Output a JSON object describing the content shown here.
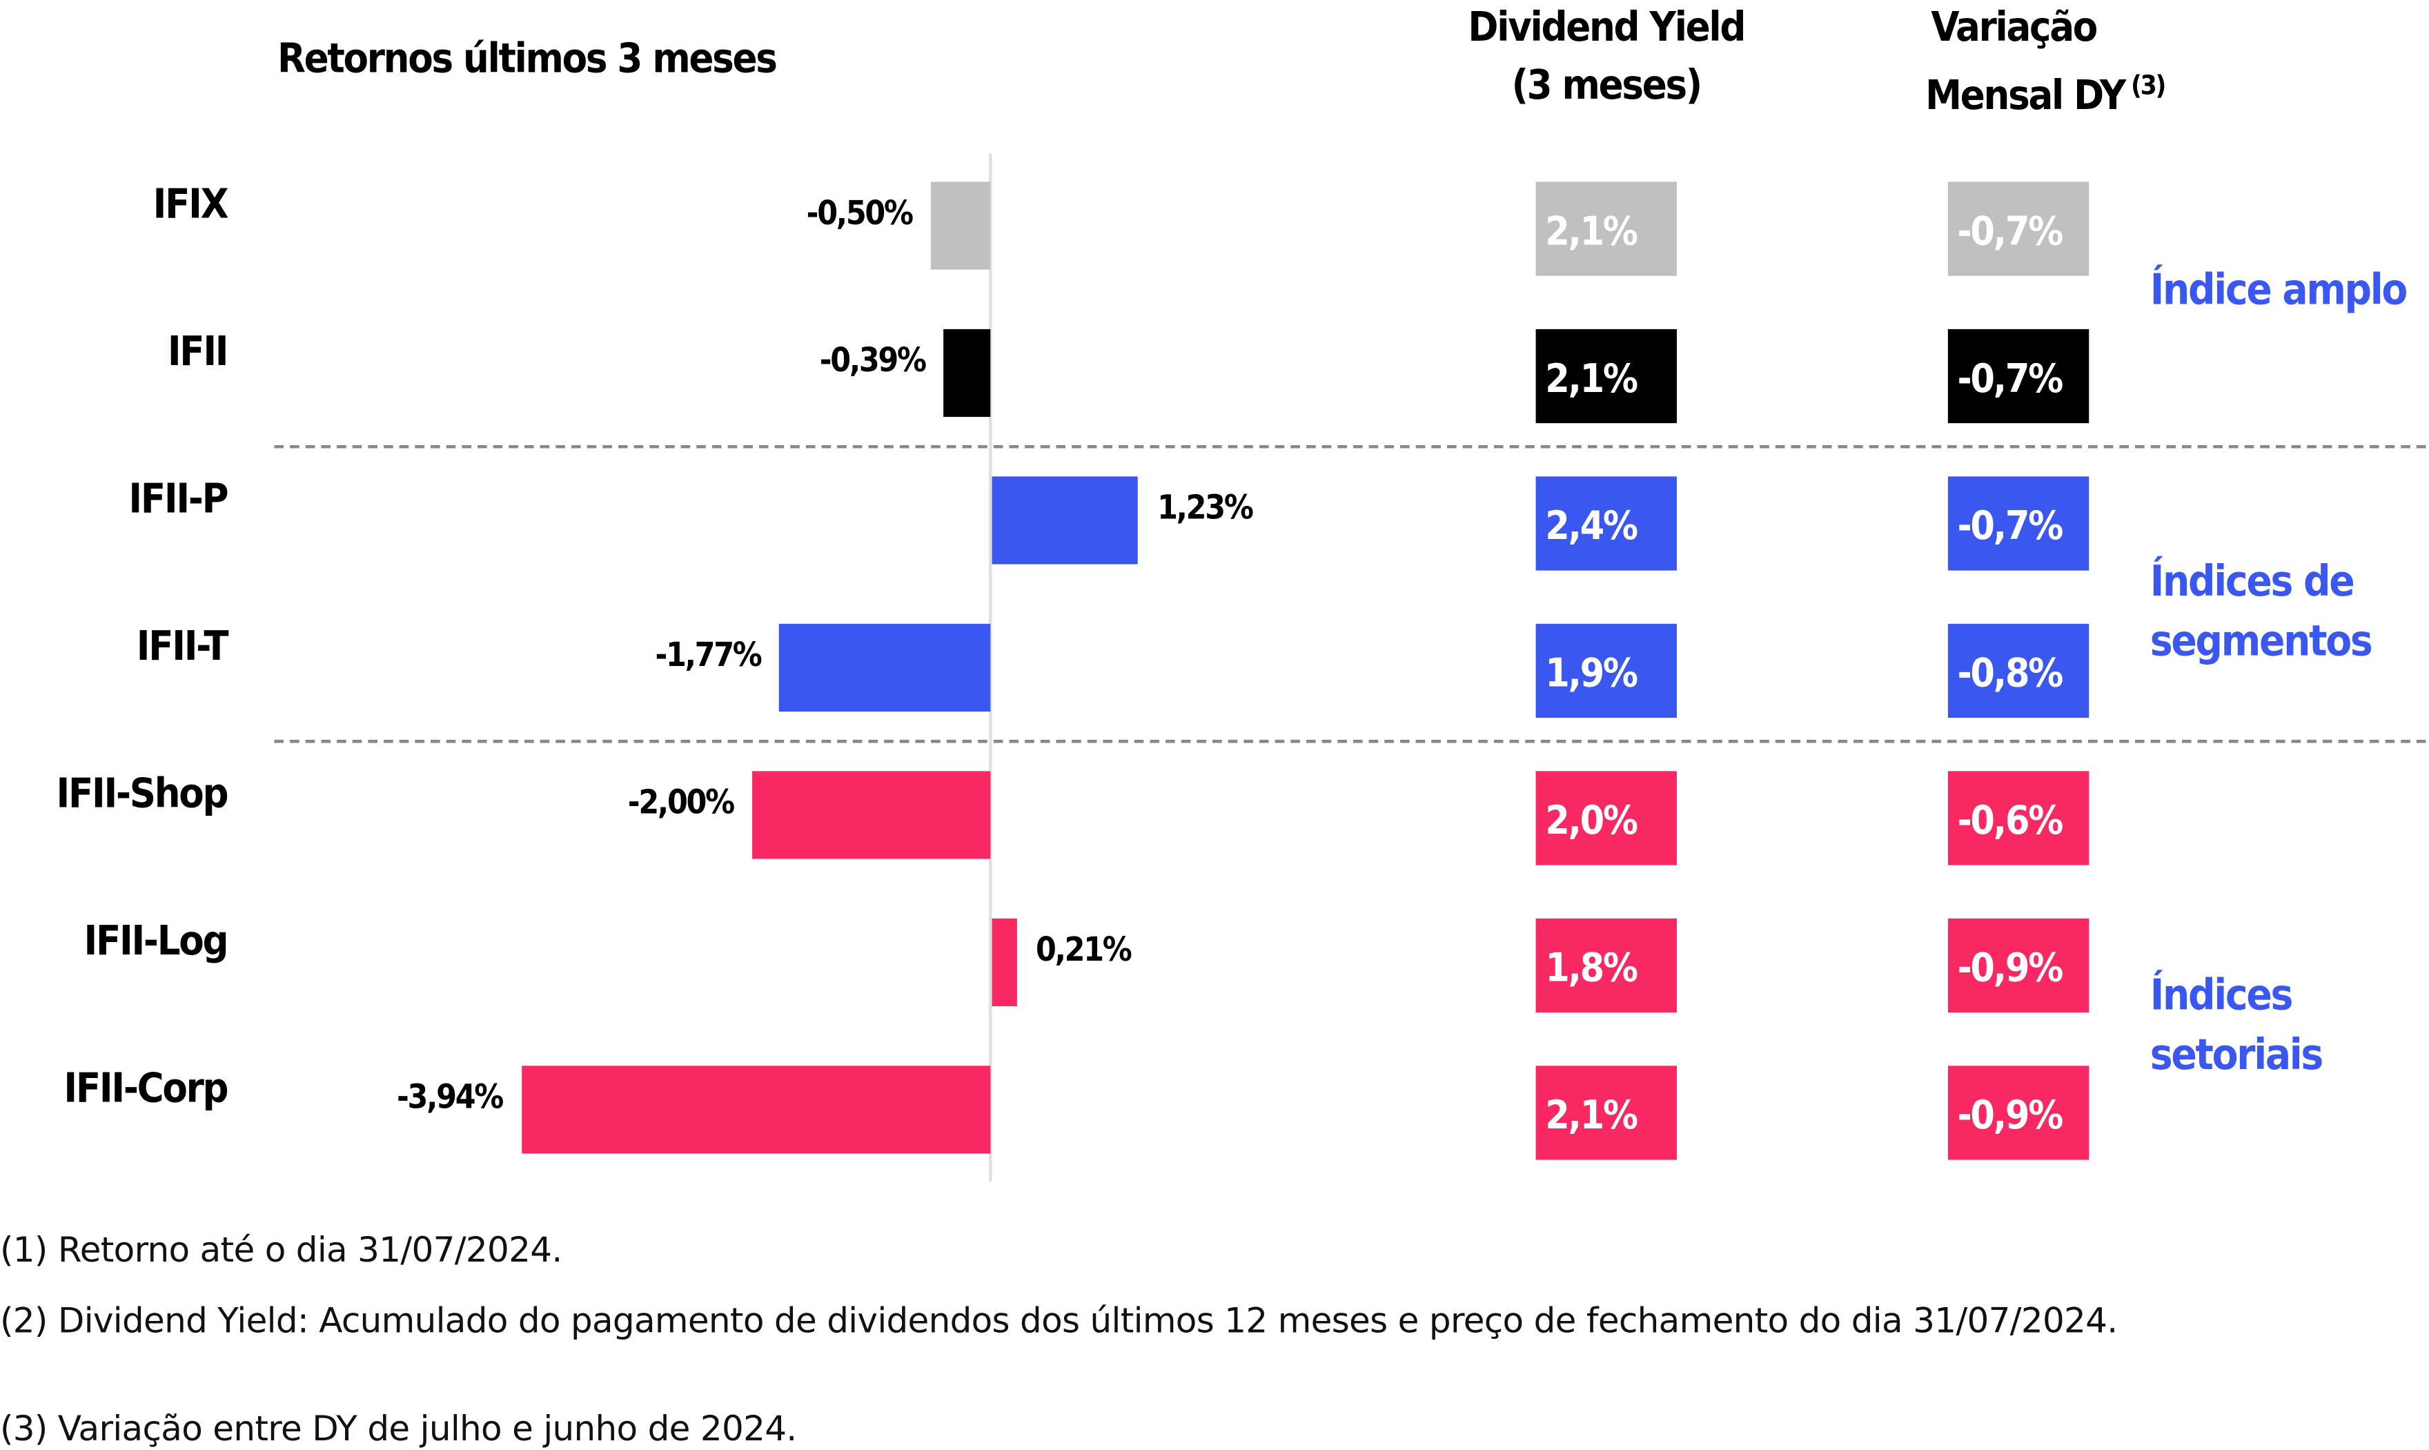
{
  "colors": {
    "gray": "#c0c0c0",
    "black": "#000000",
    "blue": "#3a57f0",
    "pink": "#f72862",
    "group_text": "#3a57f0"
  },
  "headers": {
    "returns": "Retornos últimos 3 meses",
    "dy_line1": "Dividend Yield",
    "dy_line2": "(3 meses)",
    "var_line1": "Variação",
    "var_line2": "Mensal DY",
    "var_sup": "(3)"
  },
  "groups": [
    {
      "label_line1": "Índice amplo",
      "label_line2": ""
    },
    {
      "label_line1": "Índices de",
      "label_line2": "segmentos"
    },
    {
      "label_line1": "Índices",
      "label_line2": "setoriais"
    }
  ],
  "chart_data": {
    "type": "bar",
    "orientation": "horizontal",
    "title": "Retornos últimos 3 meses",
    "categories": [
      "IFIX",
      "IFII",
      "IFII-P",
      "IFII-T",
      "IFII-Shop",
      "IFII-Log",
      "IFII-Corp"
    ],
    "values": [
      -0.5,
      -0.39,
      1.23,
      -1.77,
      -2.0,
      0.21,
      -3.94
    ],
    "value_labels": [
      "-0,50%",
      "-0,39%",
      "1,23%",
      "-1,77%",
      "-2,00%",
      "0,21%",
      "-3,94%"
    ],
    "bar_colors": [
      "gray",
      "black",
      "blue",
      "blue",
      "pink",
      "pink",
      "pink"
    ],
    "grid": false
  },
  "dividend_yield": [
    "2,1%",
    "2,1%",
    "2,4%",
    "1,9%",
    "2,0%",
    "1,8%",
    "2,1%"
  ],
  "variacao_mensal_dy": [
    "-0,7%",
    "-0,7%",
    "-0,7%",
    "-0,8%",
    "-0,6%",
    "-0,9%",
    "-0,9%"
  ],
  "footnotes": [
    "(1) Retorno até o dia 31/07/2024.",
    "(2) Dividend Yield: Acumulado do pagamento de dividendos dos últimos 12 meses e preço de fechamento do dia 31/07/2024.",
    "(3) Variação entre DY de julho e junho de 2024."
  ]
}
